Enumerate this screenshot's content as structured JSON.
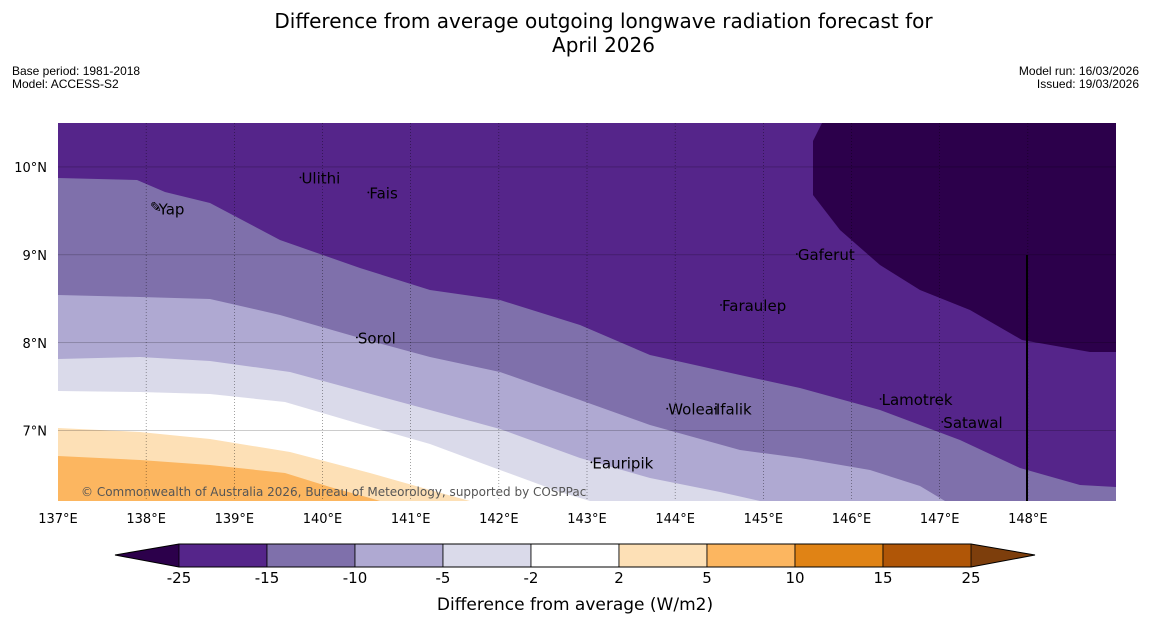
{
  "title": {
    "line1": "Difference from average outgoing longwave radiation forecast for",
    "line2": "April 2026"
  },
  "meta": {
    "base_period": "Base period: 1981-2018",
    "model": "Model: ACCESS-S2",
    "model_run": "Model run: 16/03/2026",
    "issued": "Issued: 19/03/2026"
  },
  "map": {
    "extent": {
      "lon": [
        137,
        149
      ],
      "lat": [
        6.2,
        10.5
      ]
    },
    "lon_ticks": [
      {
        "value": 137,
        "label": "137°E"
      },
      {
        "value": 138,
        "label": "138°E"
      },
      {
        "value": 139,
        "label": "139°E"
      },
      {
        "value": 140,
        "label": "140°E"
      },
      {
        "value": 141,
        "label": "141°E"
      },
      {
        "value": 142,
        "label": "142°E"
      },
      {
        "value": 143,
        "label": "143°E"
      },
      {
        "value": 144,
        "label": "144°E"
      },
      {
        "value": 145,
        "label": "145°E"
      },
      {
        "value": 146,
        "label": "146°E"
      },
      {
        "value": 147,
        "label": "147°E"
      },
      {
        "value": 148,
        "label": "148°E"
      }
    ],
    "lat_ticks": [
      {
        "value": 10,
        "label": "10°N"
      },
      {
        "value": 9,
        "label": "9°N"
      },
      {
        "value": 8,
        "label": "8°N"
      },
      {
        "value": 7,
        "label": "7°N"
      }
    ],
    "places": [
      {
        "name": "Ulithi",
        "lon": 139.75,
        "lat": 9.88
      },
      {
        "name": "Fais",
        "lon": 140.52,
        "lat": 9.71
      },
      {
        "name": "Yap",
        "lon": 138.13,
        "lat": 9.53
      },
      {
        "name": "Gaferut",
        "lon": 145.38,
        "lat": 9.01
      },
      {
        "name": "Faraulep",
        "lon": 144.52,
        "lat": 8.43
      },
      {
        "name": "Sorol",
        "lon": 140.39,
        "lat": 8.06
      },
      {
        "name": "Lamotrek",
        "lon": 146.33,
        "lat": 7.36
      },
      {
        "name": "Woleai",
        "lon": 143.91,
        "lat": 7.25
      },
      {
        "name": "Ifalik",
        "lon": 144.45,
        "lat": 7.25
      },
      {
        "name": "Satawal",
        "lon": 147.03,
        "lat": 7.1
      },
      {
        "name": "Eauripik",
        "lon": 143.05,
        "lat": 6.64
      }
    ],
    "copyright": "© Commonwealth of Australia 2026, Bureau of Meteorology, supported by COSPPac",
    "colors": {
      "lt_m25": "#2c004b",
      "m25_m15": "#55258a",
      "m15_m10": "#7f70ab",
      "m10_m5": "#afa9d2",
      "m5_m2": "#dadaea",
      "m2_2": "#ffffff",
      "p2_5": "#fde0b6",
      "p5_10": "#fcb660",
      "p10_15": "#e08315",
      "p15_25": "#b05607",
      "gt_25": "#7d3e0c"
    }
  },
  "colorbar": {
    "labels": [
      "-25",
      "-15",
      "-10",
      "-5",
      "-2",
      "2",
      "5",
      "10",
      "15",
      "25"
    ],
    "colors": [
      "#55258a",
      "#7f70ab",
      "#afa9d2",
      "#dadaea",
      "#ffffff",
      "#fde0b6",
      "#fcb660",
      "#e08315",
      "#b05607"
    ],
    "extend_low_color": "#2c004b",
    "extend_high_color": "#7d3e0c",
    "caption": "Difference from average (W/m2)"
  }
}
